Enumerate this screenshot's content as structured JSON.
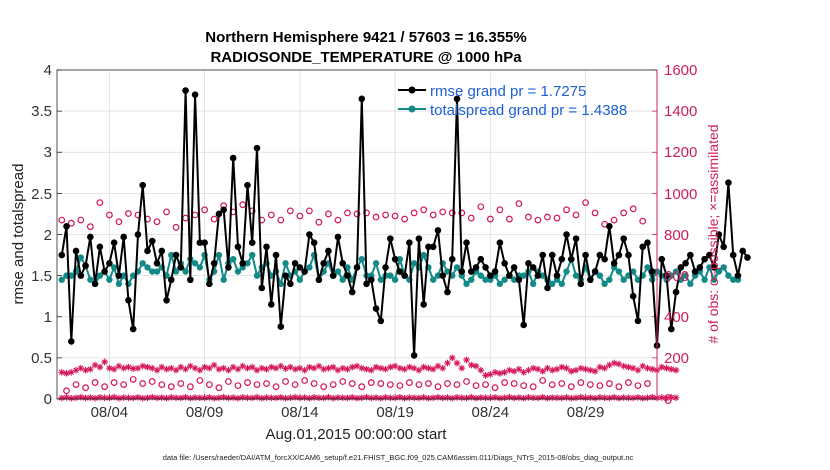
{
  "chart_data": {
    "type": "line",
    "title": "Northern Hemisphere 9421 / 57603 = 16.355%",
    "subtitle": "RADIOSONDE_TEMPERATURE @ 1000 hPa",
    "xlabel": "Aug.01,2015 00:00:00 start",
    "ylabel": "rmse and totalspread",
    "ylabel_right": "# of obs: o=possible; ×=assimilated",
    "footnote": "data file: /Users/raeder/DAI/ATM_forcXX/CAM6_setup/f.e21.FHIST_BGC.f09_025.CAM6assim.011/Diags_NTrS_2015-08/obs_diag_output.nc",
    "x_range_days": [
      0.25,
      31.75
    ],
    "ylim": [
      0,
      4
    ],
    "ylim_right": [
      0,
      1600
    ],
    "xticks": [
      {
        "day": 3,
        "label": "08/04"
      },
      {
        "day": 8,
        "label": "08/09"
      },
      {
        "day": 13,
        "label": "08/14"
      },
      {
        "day": 18,
        "label": "08/19"
      },
      {
        "day": 23,
        "label": "08/24"
      },
      {
        "day": 28,
        "label": "08/29"
      }
    ],
    "yticks": [
      "0",
      "0.5",
      "1",
      "1.5",
      "2",
      "2.5",
      "3",
      "3.5",
      "4"
    ],
    "yticks_right": [
      "0",
      "200",
      "400",
      "600",
      "800",
      "1000",
      "1200",
      "1400",
      "1600"
    ],
    "legend": {
      "location": "top-right",
      "entries": [
        "rmse grand pr = 1.7275",
        "totalspread grand pr = 1.4388"
      ]
    },
    "colors": {
      "rmse": "#000000",
      "totalspread": "#128a87",
      "obs": "#d4145a",
      "legend_text": "#1f5fd6",
      "right_axis": "#cc1f5c"
    },
    "start_day": 0.5,
    "step_days": 0.25,
    "series": [
      {
        "name": "rmse",
        "axis": "left",
        "values": [
          1.75,
          2.1,
          0.7,
          1.8,
          1.5,
          1.62,
          1.97,
          1.4,
          1.85,
          1.55,
          1.65,
          1.9,
          1.5,
          1.97,
          1.2,
          0.85,
          2.0,
          2.6,
          1.8,
          1.92,
          1.65,
          1.8,
          1.2,
          1.45,
          1.75,
          1.6,
          3.75,
          1.45,
          3.7,
          1.9,
          1.9,
          1.4,
          1.65,
          2.25,
          2.3,
          1.6,
          2.93,
          1.85,
          1.65,
          2.6,
          1.9,
          3.05,
          1.35,
          1.85,
          1.15,
          1.75,
          0.88,
          1.5,
          1.4,
          1.65,
          1.6,
          1.55,
          2.0,
          1.9,
          1.45,
          1.65,
          1.8,
          1.5,
          1.97,
          1.65,
          1.5,
          1.3,
          1.6,
          3.65,
          1.4,
          1.45,
          1.1,
          0.95,
          1.6,
          1.95,
          1.7,
          1.55,
          1.5,
          1.9,
          0.53,
          1.95,
          1.15,
          1.85,
          1.85,
          2.05,
          1.5,
          1.3,
          1.7,
          3.65,
          1.55,
          1.9,
          1.55,
          1.6,
          1.7,
          1.6,
          1.5,
          1.55,
          1.9,
          1.65,
          1.5,
          1.6,
          1.45,
          0.9,
          1.65,
          1.6,
          1.5,
          1.75,
          1.35,
          1.75,
          1.5,
          1.7,
          2.0,
          1.7,
          1.95,
          1.4,
          1.75,
          1.45,
          1.55,
          1.75,
          1.7,
          2.1,
          1.65,
          1.75,
          1.95,
          1.75,
          1.25,
          0.95,
          1.85,
          1.9,
          1.55,
          0.65,
          1.7,
          1.5,
          0.85,
          1.3,
          1.6,
          1.65,
          1.75,
          1.55,
          1.6,
          1.7,
          1.75,
          1.6,
          2.0,
          1.85,
          2.63,
          1.75,
          1.5,
          1.8,
          1.72
        ]
      },
      {
        "name": "totalspread",
        "axis": "left",
        "values": [
          1.45,
          1.5,
          1.5,
          1.55,
          1.72,
          1.62,
          1.45,
          1.4,
          1.5,
          1.55,
          1.45,
          1.6,
          1.4,
          1.5,
          1.4,
          1.5,
          1.55,
          1.65,
          1.6,
          1.55,
          1.55,
          1.6,
          1.5,
          1.75,
          1.55,
          1.65,
          1.55,
          1.7,
          1.65,
          1.6,
          1.75,
          1.45,
          1.55,
          1.75,
          1.45,
          1.65,
          1.7,
          1.55,
          1.6,
          1.65,
          1.75,
          1.5,
          1.6,
          1.65,
          1.5,
          1.55,
          1.4,
          1.65,
          1.5,
          1.55,
          1.45,
          1.55,
          1.6,
          1.75,
          1.45,
          1.55,
          1.65,
          1.5,
          1.55,
          1.45,
          1.6,
          1.45,
          1.6,
          1.7,
          1.5,
          1.5,
          1.65,
          1.45,
          1.5,
          1.5,
          1.45,
          1.7,
          1.5,
          1.45,
          1.65,
          1.6,
          1.75,
          1.6,
          1.45,
          1.5,
          1.65,
          1.55,
          1.5,
          1.6,
          1.5,
          1.4,
          1.45,
          1.55,
          1.5,
          1.45,
          1.45,
          1.5,
          1.4,
          1.45,
          1.5,
          1.45,
          1.5,
          1.5,
          1.55,
          1.4,
          1.55,
          1.5,
          1.45,
          1.4,
          1.45,
          1.4,
          1.55,
          1.7,
          1.5,
          1.45,
          1.6,
          1.45,
          1.55,
          1.5,
          1.4,
          1.45,
          1.6,
          1.55,
          1.45,
          1.5,
          1.55,
          1.45,
          1.5,
          1.6,
          1.45,
          1.55,
          1.5,
          1.45,
          1.5,
          1.55,
          1.45,
          1.5,
          1.4,
          1.5,
          1.55,
          1.45,
          1.6,
          1.45,
          1.55,
          1.6,
          1.5,
          1.45,
          1.45
        ]
      },
      {
        "name": "obs possible",
        "axis": "right",
        "marker": "o",
        "start_day": 0.5,
        "step_days": 0.5,
        "values": [
          870,
          855,
          870,
          838,
          955,
          895,
          862,
          902,
          895,
          875,
          862,
          910,
          835,
          880,
          895,
          920,
          875,
          940,
          910,
          945,
          915,
          870,
          895,
          870,
          915,
          890,
          915,
          860,
          900,
          870,
          905,
          900,
          905,
          885,
          895,
          890,
          875,
          905,
          920,
          895,
          910,
          905,
          905,
          880,
          935,
          875,
          920,
          875,
          950,
          885,
          870,
          885,
          880,
          920,
          895,
          955,
          905,
          850,
          870,
          905,
          925,
          865
        ]
      },
      {
        "name": "obs possible low",
        "axis": "right",
        "marker": "o",
        "start_day": 0.75,
        "step_days": 0.5,
        "values": [
          40,
          70,
          55,
          80,
          60,
          80,
          70,
          95,
          75,
          85,
          70,
          60,
          75,
          60,
          90,
          70,
          55,
          85,
          65,
          80,
          70,
          75,
          60,
          85,
          70,
          90,
          75,
          60,
          70,
          85,
          75,
          60,
          80,
          75,
          70,
          65,
          80,
          70,
          75,
          60,
          75,
          70,
          85,
          65,
          70,
          55,
          80,
          75,
          65,
          60,
          90,
          70,
          75,
          60,
          80,
          70,
          65,
          75,
          60,
          80,
          65,
          75
        ]
      },
      {
        "name": "assimilated",
        "axis": "right",
        "marker": "x",
        "start_day": 0.5,
        "step_days": 0.25,
        "values": [
          130,
          125,
          130,
          140,
          150,
          140,
          145,
          165,
          155,
          180,
          150,
          145,
          160,
          150,
          155,
          148,
          150,
          160,
          155,
          150,
          140,
          155,
          145,
          150,
          140,
          155,
          145,
          160,
          150,
          140,
          155,
          150,
          165,
          145,
          150,
          140,
          155,
          145,
          160,
          150,
          155,
          140,
          150,
          145,
          155,
          150,
          160,
          148,
          155,
          145,
          150,
          140,
          155,
          150,
          160,
          145,
          150,
          155,
          140,
          150,
          145,
          155,
          160,
          150,
          145,
          140,
          155,
          150,
          145,
          155,
          160,
          150,
          145,
          155,
          150,
          140,
          155,
          150,
          145,
          160,
          150,
          175,
          200,
          175,
          150,
          190,
          165,
          160,
          140,
          115,
          120,
          130,
          125,
          130,
          140,
          135,
          145,
          130,
          140,
          150,
          145,
          135,
          150,
          140,
          145,
          155,
          150,
          135,
          140,
          150,
          145,
          140,
          135,
          155,
          150,
          165,
          175,
          170,
          160,
          155,
          150,
          140,
          160,
          150,
          145,
          140,
          155,
          150,
          145,
          140
        ]
      },
      {
        "name": "assimilated low",
        "axis": "right",
        "marker": "x",
        "start_day": 0.5,
        "step_days": 0.25,
        "values": [
          5,
          8,
          4,
          6,
          9,
          5,
          7,
          4,
          8,
          6,
          5,
          9,
          4,
          7,
          6,
          5,
          8,
          4,
          6,
          9,
          5,
          7,
          4,
          8,
          6,
          5,
          9,
          4,
          7,
          6,
          5,
          8,
          4,
          6,
          9,
          5,
          7,
          4,
          8,
          6,
          5,
          9,
          4,
          7,
          6,
          5,
          8,
          4,
          6,
          9,
          5,
          7,
          4,
          8,
          6,
          5,
          9,
          4,
          7,
          6,
          5,
          8,
          4,
          6,
          9,
          5,
          7,
          4,
          8,
          6,
          5,
          9,
          4,
          7,
          6,
          5,
          8,
          4,
          6,
          9,
          5,
          7,
          4,
          8,
          6,
          5,
          9,
          4,
          7,
          6,
          5,
          8,
          4,
          6,
          9,
          5,
          7,
          4,
          8,
          6,
          5,
          9,
          4,
          7,
          6,
          5,
          8,
          4,
          6,
          9,
          5,
          7,
          4,
          8,
          6,
          5,
          9,
          4,
          7,
          6,
          5,
          8,
          4,
          6,
          9,
          5,
          7,
          4,
          8,
          6
        ]
      }
    ]
  }
}
